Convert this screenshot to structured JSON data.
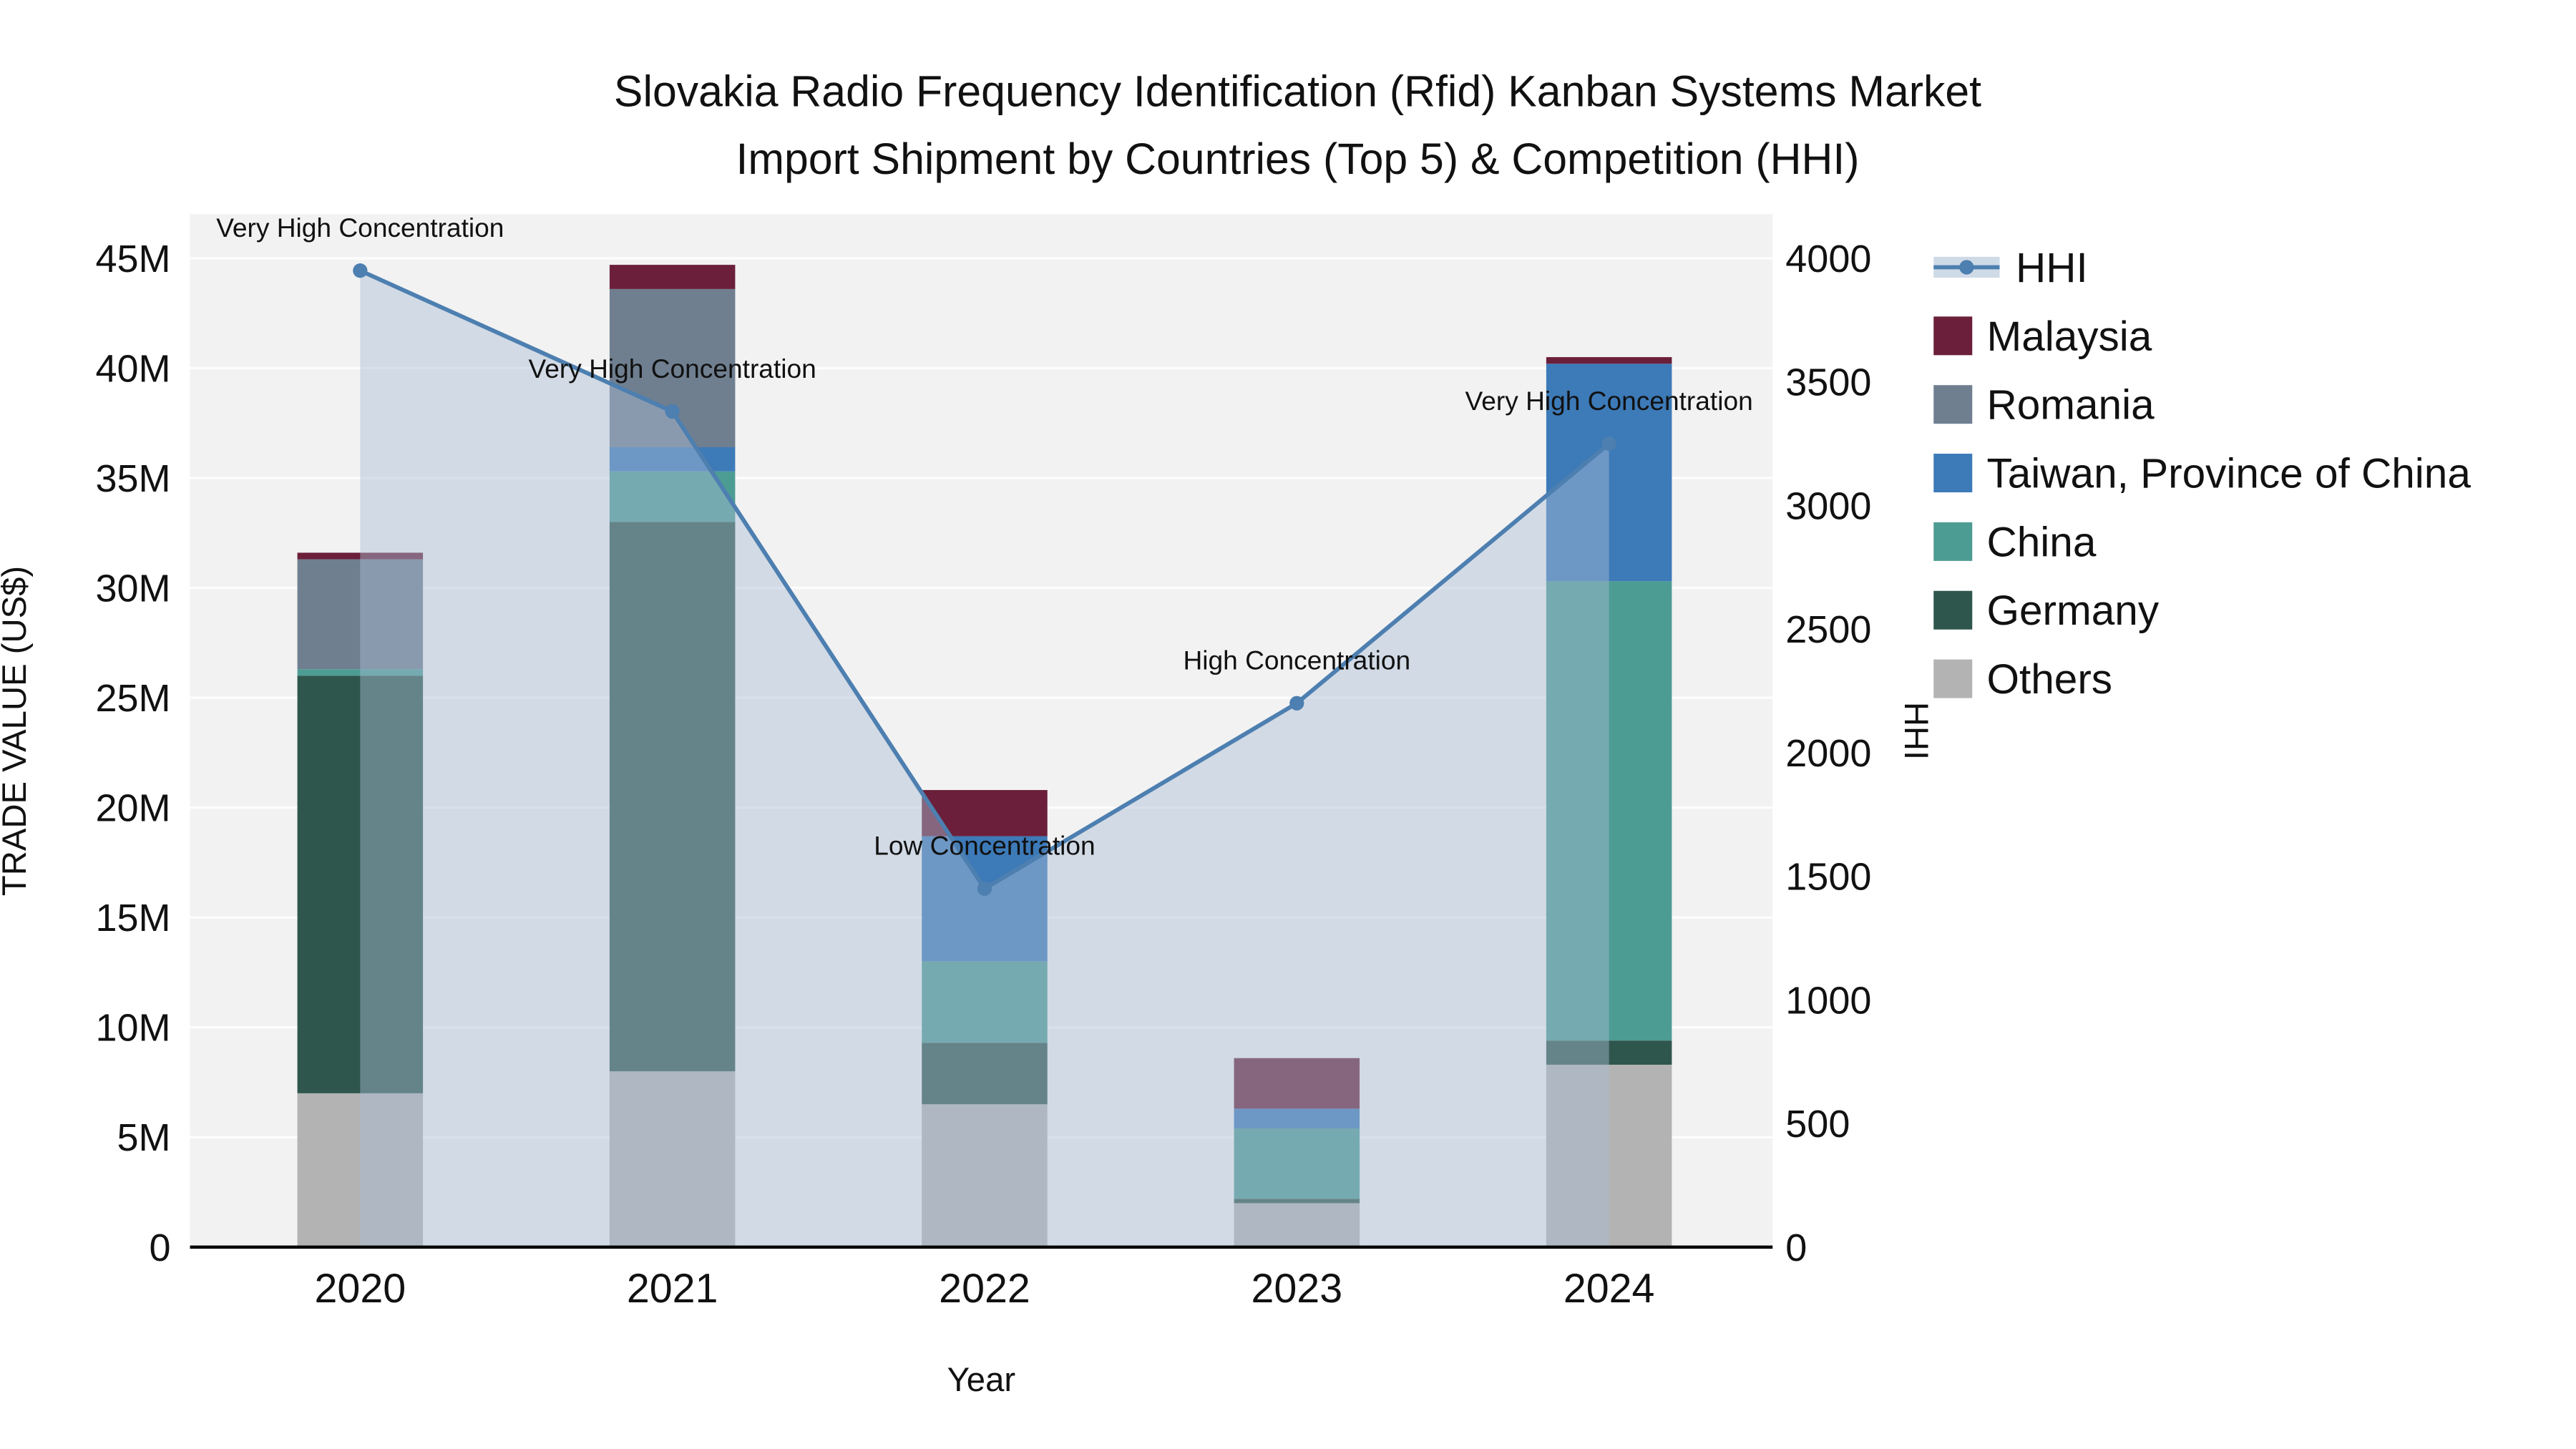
{
  "title": {
    "line1": "Slovakia Radio Frequency Identification (Rfid) Kanban Systems Market",
    "line2": "Import Shipment by Countries (Top 5) & Competition (HHI)"
  },
  "chart_data": {
    "type": "combo-stacked-bar-with-area-line",
    "categories": [
      "2020",
      "2021",
      "2022",
      "2023",
      "2024"
    ],
    "xlabel": "Year",
    "left_axis": {
      "label": "TRADE VALUE (US$)",
      "unit": "millions US$",
      "max": 45,
      "tick_step": 5,
      "tick_labels": [
        "0",
        "5M",
        "10M",
        "15M",
        "20M",
        "25M",
        "30M",
        "35M",
        "40M",
        "45M"
      ]
    },
    "right_axis": {
      "label": "HHI",
      "max": 4000,
      "tick_step": 500,
      "tick_labels": [
        "0",
        "500",
        "1000",
        "1500",
        "2000",
        "2500",
        "3000",
        "3500",
        "4000"
      ]
    },
    "bar_series_bottom_to_top": [
      {
        "name": "Others",
        "color": "#b3b3b3",
        "values": [
          7.0,
          8.0,
          6.5,
          2.0,
          8.3
        ]
      },
      {
        "name": "Germany",
        "color": "#2e564c",
        "values": [
          19.0,
          25.0,
          2.8,
          0.2,
          1.1
        ]
      },
      {
        "name": "China",
        "color": "#4d9c94",
        "values": [
          0.3,
          2.3,
          3.7,
          3.2,
          20.9
        ]
      },
      {
        "name": "Taiwan, Province of China",
        "color": "#3d7ab8",
        "values": [
          0,
          1.1,
          5.7,
          0.9,
          9.9
        ]
      },
      {
        "name": "Romania",
        "color": "#6f7f90",
        "values": [
          5.0,
          7.2,
          0,
          0,
          0
        ]
      },
      {
        "name": "Malaysia",
        "color": "#6b1f3a",
        "values": [
          0.3,
          1.1,
          2.1,
          2.3,
          0.3
        ]
      }
    ],
    "line_series": {
      "name": "HHI",
      "color": "#4d7fb0",
      "area_fill": "#a8bcd4",
      "values": [
        3950,
        3380,
        1450,
        2200,
        3250
      ]
    },
    "annotations": [
      "Very High Concentration",
      "Very High Concentration",
      "Low Concentration",
      "High Concentration",
      "Very High Concentration"
    ],
    "legend_order": [
      "HHI",
      "Malaysia",
      "Romania",
      "Taiwan, Province of China",
      "China",
      "Germany",
      "Others"
    ]
  }
}
